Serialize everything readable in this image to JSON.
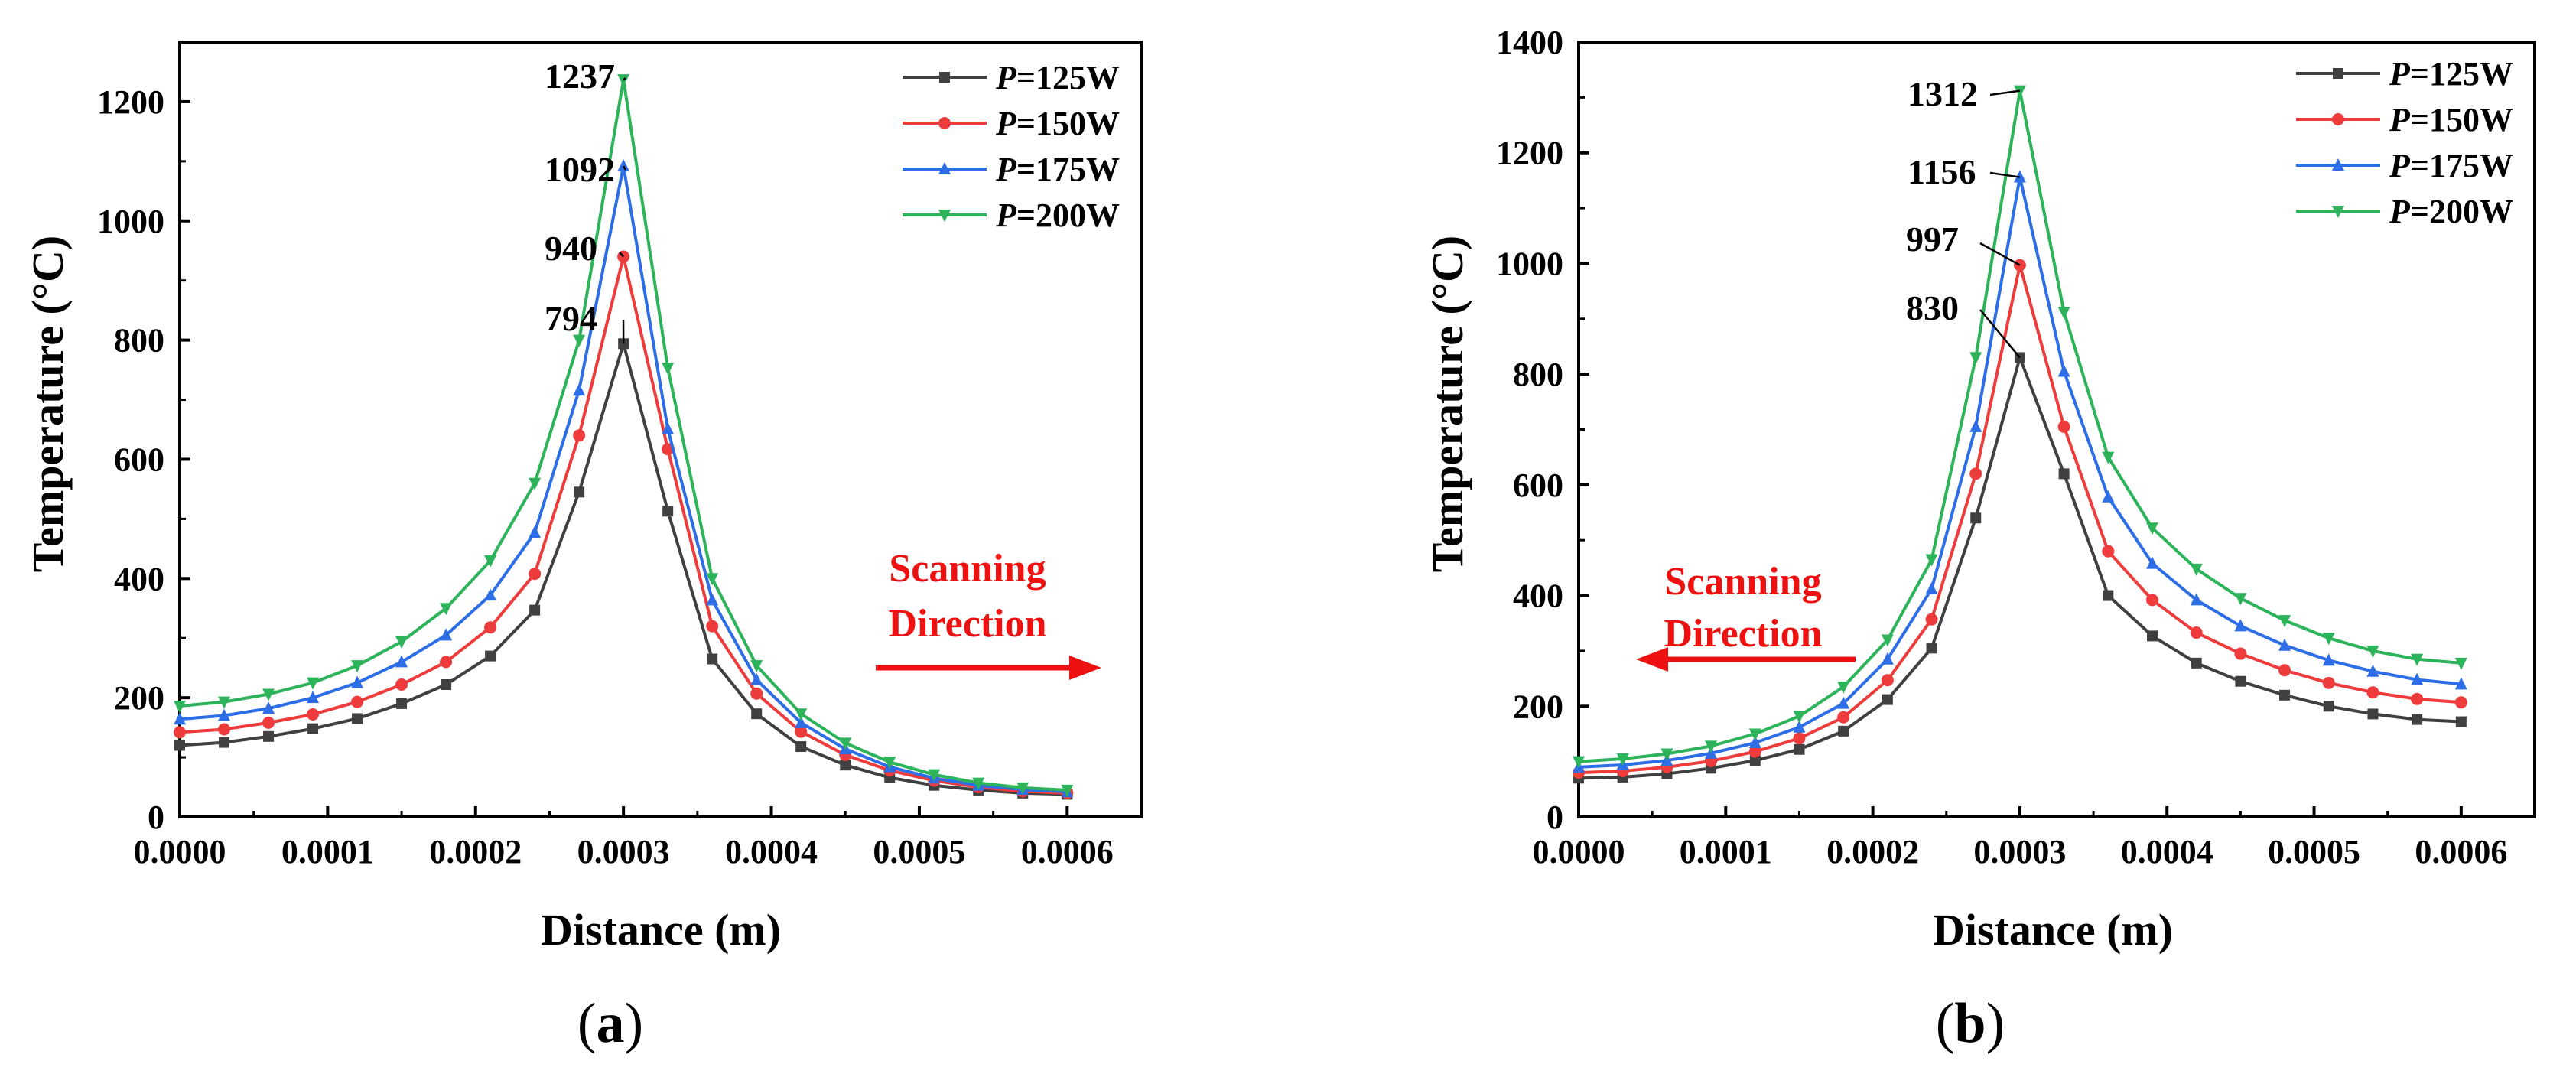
{
  "chart_data": [
    {
      "type": "line",
      "caption": "(a)",
      "caption_letter": "a",
      "xlabel": "Distance (m)",
      "ylabel": "Temperature (°C)",
      "xlim": [
        0,
        0.00065
      ],
      "ylim": [
        0,
        1300
      ],
      "xticks": [
        "0.0000",
        "0.0001",
        "0.0002",
        "0.0003",
        "0.0004",
        "0.0005",
        "0.0006"
      ],
      "yticks": [
        "0",
        "200",
        "400",
        "600",
        "800",
        "1000",
        "1200"
      ],
      "x": [
        0,
        3e-05,
        6e-05,
        9e-05,
        0.00012,
        0.00015,
        0.00018,
        0.00021,
        0.00024,
        0.00027,
        0.0003,
        0.00033,
        0.00036,
        0.00039,
        0.00042,
        0.00045,
        0.00048,
        0.00051,
        0.00054,
        0.00057,
        0.0006
      ],
      "series": [
        {
          "name": "P=125W",
          "legend_italic": "P",
          "legend_rest": "=125W",
          "color": "#404040",
          "marker": "square",
          "values": [
            120,
            125,
            135,
            148,
            165,
            190,
            222,
            270,
            347,
            545,
            794,
            513,
            265,
            173,
            118,
            87,
            66,
            53,
            45,
            40,
            38
          ]
        },
        {
          "name": "P=150W",
          "legend_italic": "P",
          "legend_rest": "=150W",
          "color": "#ee3b3b",
          "marker": "circle",
          "values": [
            142,
            147,
            158,
            172,
            193,
            222,
            260,
            318,
            408,
            640,
            940,
            617,
            320,
            207,
            143,
            104,
            78,
            61,
            50,
            43,
            40
          ]
        },
        {
          "name": "P=175W",
          "legend_italic": "P",
          "legend_rest": "=175W",
          "color": "#2d6ee6",
          "marker": "triangle-up",
          "values": [
            164,
            170,
            182,
            200,
            225,
            260,
            305,
            372,
            477,
            716,
            1092,
            651,
            364,
            230,
            158,
            114,
            84,
            65,
            53,
            46,
            42
          ]
        },
        {
          "name": "P=200W",
          "legend_italic": "P",
          "legend_rest": "=200W",
          "color": "#2db35a",
          "marker": "triangle-down",
          "values": [
            186,
            193,
            206,
            225,
            254,
            294,
            350,
            430,
            560,
            800,
            1237,
            753,
            400,
            254,
            173,
            124,
            92,
            71,
            57,
            49,
            45
          ]
        }
      ],
      "annotations": [
        "1237",
        "1092",
        "940",
        "794"
      ],
      "direction_label_line1": "Scanning",
      "direction_label_line2": "Direction",
      "direction": "right",
      "legend_position": "top-right"
    },
    {
      "type": "line",
      "caption": "(b)",
      "caption_letter": "b",
      "xlabel": "Distance (m)",
      "ylabel": "Temperature (°C)",
      "xlim": [
        0,
        0.00065
      ],
      "ylim": [
        0,
        1400
      ],
      "xticks": [
        "0.0000",
        "0.0001",
        "0.0002",
        "0.0003",
        "0.0004",
        "0.0005",
        "0.0006"
      ],
      "yticks": [
        "0",
        "200",
        "400",
        "600",
        "800",
        "1000",
        "1200",
        "1400"
      ],
      "x": [
        0,
        3e-05,
        6e-05,
        9e-05,
        0.00012,
        0.00015,
        0.00018,
        0.00021,
        0.00024,
        0.00027,
        0.0003,
        0.00033,
        0.00036,
        0.00039,
        0.00042,
        0.00045,
        0.00048,
        0.00051,
        0.00054,
        0.00057,
        0.0006
      ],
      "series": [
        {
          "name": "P=125W",
          "legend_italic": "P",
          "legend_rest": "=125W",
          "color": "#404040",
          "marker": "square",
          "values": [
            70,
            72,
            78,
            88,
            102,
            122,
            155,
            212,
            305,
            540,
            830,
            620,
            400,
            327,
            278,
            245,
            220,
            200,
            186,
            176,
            172
          ]
        },
        {
          "name": "P=150W",
          "legend_italic": "P",
          "legend_rest": "=150W",
          "color": "#ee3b3b",
          "marker": "circle",
          "values": [
            80,
            83,
            90,
            101,
            118,
            142,
            180,
            247,
            357,
            620,
            997,
            705,
            480,
            392,
            333,
            295,
            265,
            242,
            225,
            213,
            207
          ]
        },
        {
          "name": "P=175W",
          "legend_italic": "P",
          "legend_rest": "=175W",
          "color": "#2d6ee6",
          "marker": "triangle-up",
          "values": [
            90,
            94,
            102,
            115,
            134,
            162,
            205,
            285,
            412,
            705,
            1156,
            805,
            578,
            458,
            392,
            345,
            310,
            283,
            263,
            248,
            240
          ]
        },
        {
          "name": "P=200W",
          "legend_italic": "P",
          "legend_rest": "=200W",
          "color": "#2db35a",
          "marker": "triangle-down",
          "values": [
            100,
            105,
            114,
            128,
            150,
            182,
            235,
            320,
            465,
            830,
            1312,
            912,
            650,
            522,
            448,
            395,
            355,
            323,
            300,
            285,
            278
          ]
        }
      ],
      "annotations": [
        "1312",
        "1156",
        "997",
        "830"
      ],
      "direction_label_line1": "Scanning",
      "direction_label_line2": "Direction",
      "direction": "left",
      "legend_position": "top-right"
    }
  ]
}
